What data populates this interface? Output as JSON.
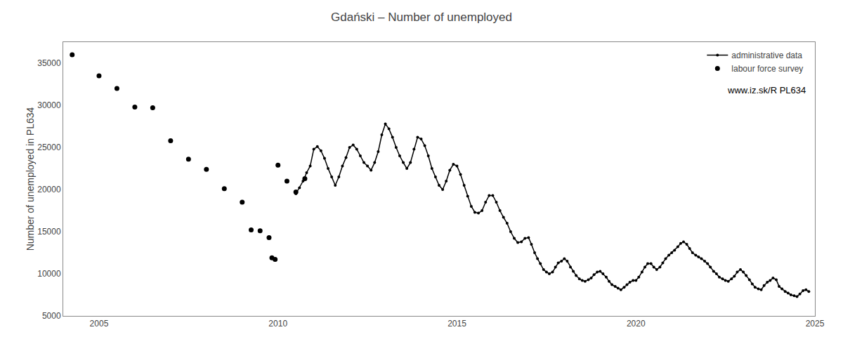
{
  "chart_data": {
    "type": "line",
    "title": "Gdański – Number of unemployed",
    "ylabel": "Number of unemployed in PL634",
    "xlim": [
      2004.0,
      2025.0
    ],
    "xticks": [
      2005,
      2010,
      2015,
      2020,
      2025
    ],
    "ylim": [
      5000,
      37500
    ],
    "yticks": [
      5000,
      10000,
      15000,
      20000,
      25000,
      30000,
      35000
    ],
    "grid": false,
    "legend": "upper right",
    "annotations": [
      {
        "text": "www.iz.sk/R PL634"
      }
    ],
    "series": [
      {
        "name": "labour force survey",
        "type": "scatter",
        "color": "#000000",
        "marker": "circle",
        "x": [
          2004.25,
          2005.0,
          2005.5,
          2006.0,
          2006.5,
          2007.0,
          2007.5,
          2008.0,
          2008.5,
          2009.0,
          2009.25,
          2009.5,
          2009.75,
          2009.83,
          2009.92,
          2010.0,
          2010.25,
          2010.5,
          2010.75
        ],
        "values": [
          36000,
          33500,
          32000,
          29800,
          29700,
          25800,
          23600,
          22400,
          20100,
          18500,
          15200,
          15100,
          14300,
          11900,
          11700,
          22900,
          21000,
          19700,
          21300
        ]
      },
      {
        "name": "administrative data",
        "type": "line",
        "color": "#000000",
        "marker": "circle",
        "line_style": "solid",
        "x": [
          2010.5,
          2010.6,
          2010.7,
          2010.8,
          2010.9,
          2011.0,
          2011.1,
          2011.2,
          2011.3,
          2011.4,
          2011.5,
          2011.6,
          2011.7,
          2011.8,
          2011.9,
          2012.0,
          2012.1,
          2012.2,
          2012.3,
          2012.4,
          2012.5,
          2012.6,
          2012.7,
          2012.8,
          2012.9,
          2013.0,
          2013.1,
          2013.2,
          2013.3,
          2013.4,
          2013.5,
          2013.6,
          2013.7,
          2013.8,
          2013.9,
          2014.0,
          2014.1,
          2014.2,
          2014.3,
          2014.4,
          2014.5,
          2014.6,
          2014.7,
          2014.8,
          2014.9,
          2015.0,
          2015.1,
          2015.2,
          2015.3,
          2015.4,
          2015.5,
          2015.6,
          2015.7,
          2015.8,
          2015.9,
          2016.0,
          2016.1,
          2016.2,
          2016.3,
          2016.4,
          2016.5,
          2016.6,
          2016.7,
          2016.8,
          2016.9,
          2017.0,
          2017.08,
          2017.17,
          2017.25,
          2017.33,
          2017.42,
          2017.5,
          2017.58,
          2017.67,
          2017.75,
          2017.83,
          2017.92,
          2018.0,
          2018.08,
          2018.17,
          2018.25,
          2018.33,
          2018.42,
          2018.5,
          2018.58,
          2018.67,
          2018.75,
          2018.83,
          2018.92,
          2019.0,
          2019.08,
          2019.17,
          2019.25,
          2019.33,
          2019.42,
          2019.5,
          2019.58,
          2019.67,
          2019.75,
          2019.83,
          2019.92,
          2020.0,
          2020.08,
          2020.17,
          2020.25,
          2020.33,
          2020.42,
          2020.5,
          2020.58,
          2020.67,
          2020.75,
          2020.83,
          2020.92,
          2021.0,
          2021.08,
          2021.17,
          2021.25,
          2021.33,
          2021.42,
          2021.5,
          2021.58,
          2021.67,
          2021.75,
          2021.83,
          2021.92,
          2022.0,
          2022.08,
          2022.17,
          2022.25,
          2022.33,
          2022.42,
          2022.5,
          2022.58,
          2022.67,
          2022.75,
          2022.83,
          2022.92,
          2023.0,
          2023.08,
          2023.17,
          2023.25,
          2023.33,
          2023.42,
          2023.5,
          2023.58,
          2023.67,
          2023.75,
          2023.83,
          2023.92,
          2024.0,
          2024.08,
          2024.17,
          2024.25,
          2024.33,
          2024.42,
          2024.5,
          2024.58,
          2024.67,
          2024.75,
          2024.83
        ],
        "values": [
          19500,
          20200,
          21000,
          22000,
          22800,
          24800,
          25100,
          24600,
          23700,
          22500,
          21500,
          20500,
          21500,
          22800,
          23800,
          25000,
          25300,
          24800,
          24000,
          23200,
          22800,
          22300,
          23200,
          24500,
          26500,
          27800,
          27200,
          26200,
          25000,
          24000,
          23200,
          22500,
          23200,
          24800,
          26200,
          26000,
          25200,
          24000,
          22500,
          21500,
          20500,
          20000,
          21000,
          22300,
          23000,
          22800,
          21800,
          20500,
          19200,
          18000,
          17300,
          17200,
          17500,
          18500,
          19300,
          19300,
          18500,
          17500,
          16700,
          16000,
          15000,
          14200,
          13700,
          13800,
          14200,
          14300,
          13500,
          12500,
          11800,
          11200,
          10500,
          10200,
          10000,
          10200,
          10800,
          11300,
          11500,
          11800,
          11500,
          10800,
          10300,
          9800,
          9400,
          9200,
          9100,
          9300,
          9500,
          9900,
          10200,
          10300,
          10000,
          9600,
          9100,
          8700,
          8500,
          8300,
          8100,
          8400,
          8700,
          9000,
          9200,
          9200,
          9600,
          10200,
          10800,
          11200,
          11200,
          10800,
          10500,
          10800,
          11300,
          11800,
          12200,
          12500,
          12800,
          13200,
          13600,
          13800,
          13500,
          13000,
          12500,
          12200,
          12000,
          11800,
          11500,
          11200,
          10800,
          10300,
          10000,
          9600,
          9400,
          9200,
          9100,
          9400,
          9700,
          10200,
          10500,
          10200,
          9800,
          9300,
          8800,
          8400,
          8200,
          8100,
          8600,
          9000,
          9200,
          9500,
          9300,
          8500,
          8200,
          7900,
          7700,
          7500,
          7400,
          7300,
          7600,
          8000,
          8100,
          7900
        ]
      }
    ]
  }
}
